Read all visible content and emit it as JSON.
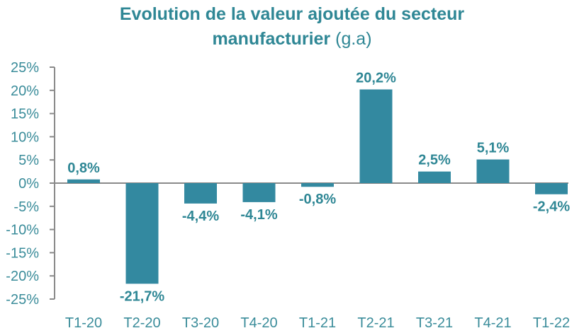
{
  "chart_data": {
    "type": "bar",
    "title": "Evolution de la valeur ajoutée du secteur manufacturier",
    "title_line1": "Evolution de la valeur ajoutée du secteur",
    "title_line2_bold": "manufacturier",
    "title_line2_light": " (g.a)",
    "categories": [
      "T1-20",
      "T2-20",
      "T3-20",
      "T4-20",
      "T1-21",
      "T2-21",
      "T3-21",
      "T4-21",
      "T1-22"
    ],
    "values": [
      0.8,
      -21.7,
      -4.4,
      -4.1,
      -0.8,
      20.2,
      2.5,
      5.1,
      -2.4
    ],
    "data_labels": [
      "0,8%",
      "-21,7%",
      "-4,4%",
      "-4,1%",
      "-0,8%",
      "20,2%",
      "2,5%",
      "5,1%",
      "-2,4%"
    ],
    "yticks": [
      "25%",
      "20%",
      "15%",
      "10%",
      "5%",
      "0%",
      "-5%",
      "-10%",
      "-15%",
      "-20%",
      "-25%"
    ],
    "ytick_values": [
      25,
      20,
      15,
      10,
      5,
      0,
      -5,
      -10,
      -15,
      -20,
      -25
    ],
    "ylim": [
      -25,
      25
    ],
    "xlabel": "",
    "ylabel": "",
    "grid": false,
    "legend": "none",
    "colors": {
      "bar": "#3389a0",
      "title": "#2f8795",
      "axis_text": "#3a8c9a",
      "axis_line": "#8a8a8a"
    }
  }
}
